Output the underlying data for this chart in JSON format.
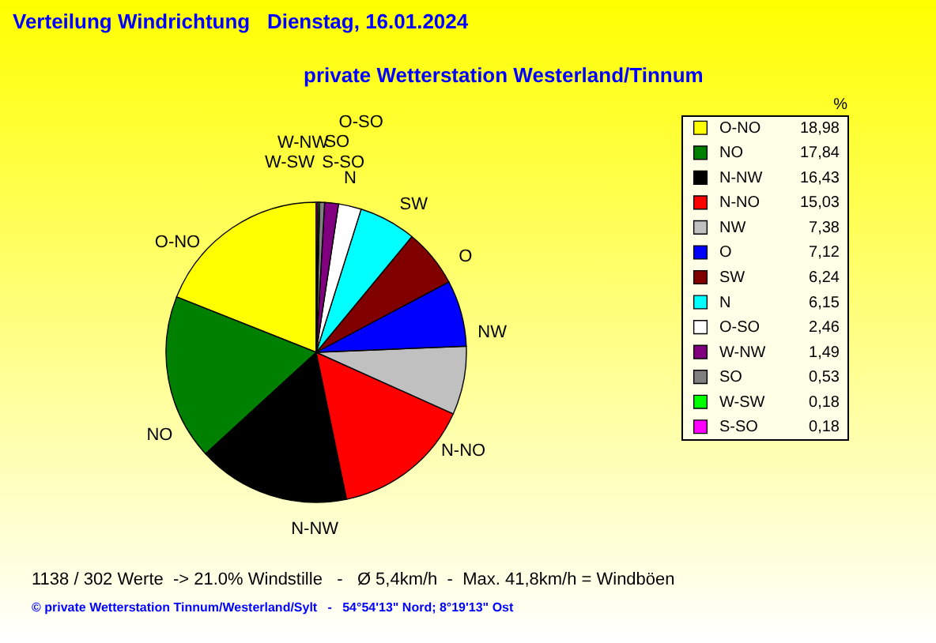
{
  "chart_data": {
    "type": "pie",
    "title": "Verteilung Windrichtung   Dienstag, 16.01.2024",
    "subtitle": "private Wetterstation Westerland/Tinnum",
    "categories": [
      "O-NO",
      "NO",
      "N-NW",
      "N-NO",
      "NW",
      "O",
      "SW",
      "N",
      "O-SO",
      "W-NW",
      "SO",
      "W-SW",
      "S-SO"
    ],
    "values": [
      18.98,
      17.84,
      16.43,
      15.03,
      7.38,
      7.12,
      6.24,
      6.15,
      2.46,
      1.49,
      0.53,
      0.18,
      0.18
    ],
    "value_labels": [
      "18,98",
      "17,84",
      "16,43",
      "15,03",
      "7,38",
      "7,12",
      "6,24",
      "6,15",
      "2,46",
      "1,49",
      "0,53",
      "0,18",
      "0,18"
    ],
    "colors": [
      "#ffff00",
      "#008000",
      "#000000",
      "#ff0000",
      "#c0c0c0",
      "#0000ff",
      "#800000",
      "#00ffff",
      "#ffffff",
      "#800080",
      "#808080",
      "#00ff00",
      "#ff00ff"
    ],
    "legend": "right",
    "legend_title": "%",
    "annotations": [
      "1138 / 302 Werte  -> 21.0% Windstille   -   Ø 5,4km/h  -  Max. 41,8km/h = Windböen",
      "© private Wetterstation Tinnum/Westerland/Sylt   -   54°54'13\" Nord; 8°19'13\" Ost"
    ]
  }
}
